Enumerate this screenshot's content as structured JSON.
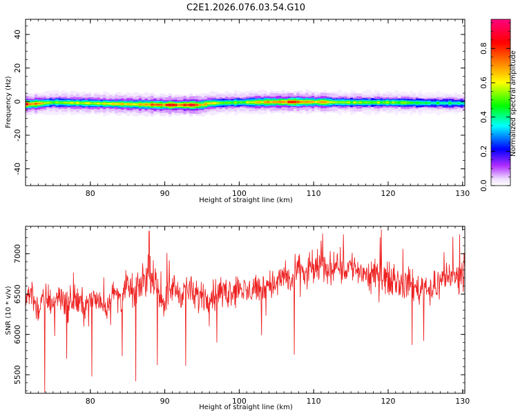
{
  "figure_title": "C2E1.2026.076.03.54.G10",
  "chart_data": [
    {
      "type": "heatmap",
      "title": "C2E1.2026.076.03.54.G10",
      "xlabel": "Height of straight line (km)",
      "ylabel": "Frequency (Hz)",
      "xlim": [
        71.3,
        130.3
      ],
      "ylim": [
        -50,
        49
      ],
      "x_ticks": [
        80,
        90,
        100,
        110,
        120,
        130
      ],
      "y_ticks": [
        40,
        20,
        0,
        -20,
        -40
      ],
      "colorbar": {
        "label": "Normalized spectral amplitude",
        "range": [
          0,
          0.97
        ],
        "ticks": [
          0.0,
          0.2,
          0.4,
          0.6,
          0.8
        ],
        "colormap": [
          "#ffffff",
          "#b02cff",
          "#0000ff",
          "#00ffff",
          "#00ff00",
          "#ffff00",
          "#ff8000",
          "#ff0000",
          "#ff0080"
        ]
      },
      "band_center_hz": [
        [
          71.3,
          -1.5
        ],
        [
          72,
          -1.5
        ],
        [
          75,
          -0.5
        ],
        [
          80,
          -1.0
        ],
        [
          85,
          -1.5
        ],
        [
          90,
          -2.0
        ],
        [
          95,
          -2.0
        ],
        [
          96,
          -1.0
        ],
        [
          100,
          -0.5
        ],
        [
          105,
          -0.2
        ],
        [
          110,
          -0.2
        ],
        [
          115,
          -0.5
        ],
        [
          120,
          -0.5
        ],
        [
          125,
          -0.8
        ],
        [
          130.3,
          -1.0
        ]
      ],
      "band_peak_amplitude": [
        [
          71.3,
          0.85
        ],
        [
          72,
          0.75
        ],
        [
          75,
          0.55
        ],
        [
          80,
          0.6
        ],
        [
          85,
          0.65
        ],
        [
          88,
          0.75
        ],
        [
          90,
          0.8
        ],
        [
          94,
          0.85
        ],
        [
          96,
          0.6
        ],
        [
          100,
          0.5
        ],
        [
          104,
          0.7
        ],
        [
          107,
          0.8
        ],
        [
          110,
          0.7
        ],
        [
          115,
          0.55
        ],
        [
          120,
          0.55
        ],
        [
          125,
          0.45
        ],
        [
          130.3,
          0.4
        ]
      ]
    },
    {
      "type": "line",
      "xlabel": "Height of straight line (km)",
      "ylabel": "SNR (10 * v/v)",
      "xlim": [
        71.3,
        130.3
      ],
      "ylim": [
        5270,
        7340
      ],
      "x_ticks": [
        80,
        90,
        100,
        110,
        120,
        130
      ],
      "y_ticks": [
        5500,
        6000,
        6500,
        7000
      ],
      "series": [
        {
          "color": "#ee2222",
          "trend_points": [
            [
              71.3,
              6350
            ],
            [
              72,
              6550
            ],
            [
              73,
              6300
            ],
            [
              74,
              6450
            ],
            [
              75,
              6400
            ],
            [
              76,
              6500
            ],
            [
              77,
              6350
            ],
            [
              78,
              6450
            ],
            [
              79,
              6350
            ],
            [
              80,
              6400
            ],
            [
              81,
              6450
            ],
            [
              82,
              6350
            ],
            [
              83,
              6500
            ],
            [
              84,
              6450
            ],
            [
              85,
              6600
            ],
            [
              86,
              6500
            ],
            [
              87,
              6650
            ],
            [
              88,
              6750
            ],
            [
              89,
              6550
            ],
            [
              90,
              6400
            ],
            [
              91,
              6600
            ],
            [
              92,
              6500
            ],
            [
              93,
              6600
            ],
            [
              94,
              6450
            ],
            [
              95,
              6500
            ],
            [
              96,
              6450
            ],
            [
              97,
              6550
            ],
            [
              98,
              6500
            ],
            [
              99,
              6550
            ],
            [
              100,
              6600
            ],
            [
              101,
              6500
            ],
            [
              102,
              6600
            ],
            [
              103,
              6550
            ],
            [
              104,
              6650
            ],
            [
              105,
              6600
            ],
            [
              106,
              6750
            ],
            [
              107,
              6650
            ],
            [
              108,
              6800
            ],
            [
              109,
              6750
            ],
            [
              110,
              6800
            ],
            [
              111,
              6850
            ],
            [
              112,
              6800
            ],
            [
              113,
              6900
            ],
            [
              114,
              6800
            ],
            [
              115,
              6850
            ],
            [
              116,
              6800
            ],
            [
              117,
              6750
            ],
            [
              118,
              6700
            ],
            [
              119,
              6800
            ],
            [
              120,
              6650
            ],
            [
              121,
              6700
            ],
            [
              122,
              6600
            ],
            [
              123,
              6650
            ],
            [
              124,
              6550
            ],
            [
              125,
              6600
            ],
            [
              126,
              6550
            ],
            [
              127,
              6650
            ],
            [
              128,
              6750
            ],
            [
              129,
              6700
            ],
            [
              130.3,
              6800
            ]
          ],
          "noise_amplitude": 160,
          "notable_points": [
            [
              73.9,
              5280
            ],
            [
              75.2,
              5980
            ],
            [
              76.8,
              5700
            ],
            [
              80.2,
              5480
            ],
            [
              84.3,
              5730
            ],
            [
              86.1,
              5420
            ],
            [
              87.9,
              7280
            ],
            [
              89.0,
              5620
            ],
            [
              90.3,
              7010
            ],
            [
              92.8,
              5610
            ],
            [
              97.0,
              5900
            ],
            [
              103.0,
              5990
            ],
            [
              107.4,
              5750
            ],
            [
              109.8,
              7050
            ],
            [
              110.5,
              7060
            ],
            [
              111.2,
              7250
            ],
            [
              114.0,
              7240
            ],
            [
              119.1,
              7300
            ],
            [
              122.0,
              7060
            ],
            [
              123.2,
              5870
            ],
            [
              124.8,
              5920
            ],
            [
              127.5,
              7020
            ],
            [
              128.7,
              7210
            ],
            [
              129.6,
              7240
            ]
          ]
        }
      ]
    }
  ]
}
